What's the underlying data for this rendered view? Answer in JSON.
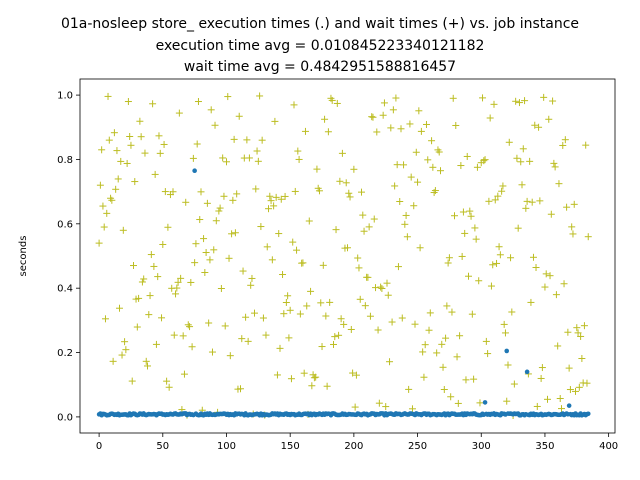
{
  "chart_data": {
    "type": "scatter",
    "title": [
      "01a-nosleep store_ execution times (.) and wait times (+) vs. job instance",
      "execution time avg = 0.010845223340121182",
      "wait time avg = 0.4842951588816457"
    ],
    "xlabel": "",
    "ylabel": "seconds",
    "xlim": [
      -15,
      405
    ],
    "ylim": [
      -0.05,
      1.05
    ],
    "xticks": [
      0,
      50,
      100,
      150,
      200,
      250,
      300,
      350,
      400
    ],
    "yticks": [
      0.0,
      0.2,
      0.4,
      0.6,
      0.8,
      1.0
    ],
    "grid": false,
    "legend": "none",
    "series": [
      {
        "marker": "dot",
        "color": "#1f77b4",
        "n": 385,
        "base_value": 0.008,
        "spread": 0.006,
        "outliers": [
          {
            "x": 75,
            "y": 0.765
          },
          {
            "x": 303,
            "y": 0.045
          },
          {
            "x": 320,
            "y": 0.205
          },
          {
            "x": 336,
            "y": 0.14
          },
          {
            "x": 369,
            "y": 0.035
          }
        ]
      },
      {
        "marker": "plus",
        "color": "#bcbd22",
        "n": 385,
        "range": [
          0.0,
          1.0
        ],
        "description_points": [
          {
            "x": 0,
            "y": 0.54
          },
          {
            "x": 1,
            "y": 0.72
          },
          {
            "x": 2,
            "y": 0.83
          },
          {
            "x": 4,
            "y": 0.59
          },
          {
            "x": 8,
            "y": 0.86
          },
          {
            "x": 23,
            "y": 0.98
          },
          {
            "x": 78,
            "y": 0.98
          },
          {
            "x": 182,
            "y": 0.99
          },
          {
            "x": 278,
            "y": 0.99
          },
          {
            "x": 300,
            "y": 0.79
          },
          {
            "x": 345,
            "y": 0.9
          },
          {
            "x": 378,
            "y": 0.25
          },
          {
            "x": 384,
            "y": 0.56
          }
        ]
      }
    ]
  }
}
